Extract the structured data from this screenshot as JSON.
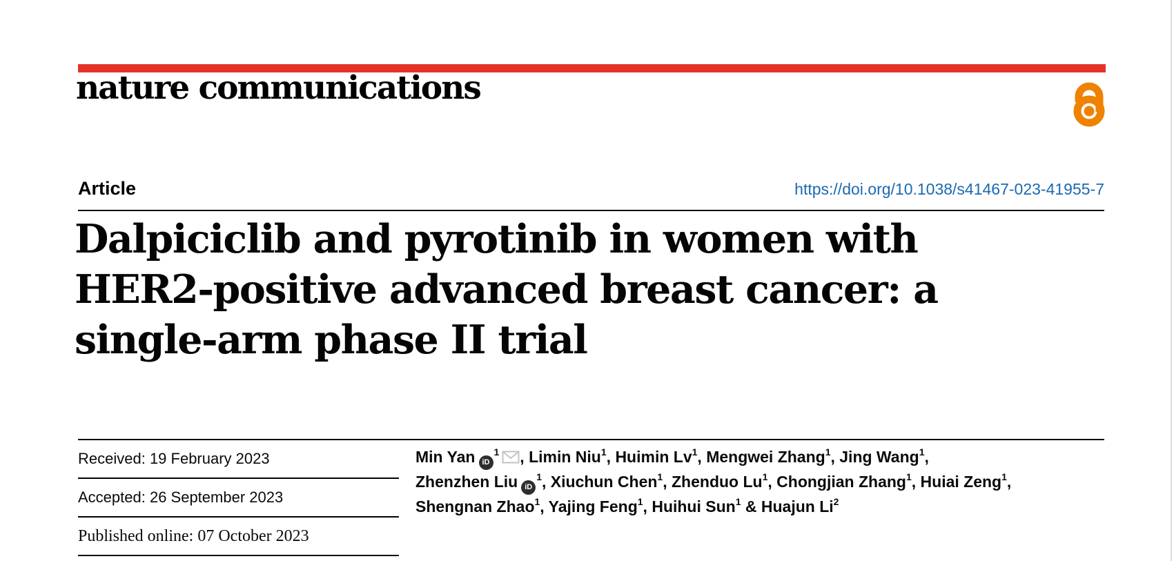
{
  "colors": {
    "accent_red": "#e5332a",
    "open_access_orange": "#ef8200",
    "link_blue": "#1b69b0"
  },
  "branding": {
    "journal_logo_text": "nature communications",
    "open_access_icon": "open-access-lock-icon"
  },
  "header": {
    "article_label": "Article",
    "doi_link": "https://doi.org/10.1038/s41467-023-41955-7"
  },
  "title": {
    "lines": [
      "Dalpiciclib and pyrotinib in women with",
      "HER2-positive advanced breast cancer: a",
      "single-arm phase II trial"
    ]
  },
  "dates": {
    "received": "Received: 19 February 2023",
    "accepted": "Accepted: 26 September 2023",
    "published": "Published online: 07 October 2023"
  },
  "authors": {
    "orcid_icon": "orcid-id-icon",
    "email_icon": "envelope-icon",
    "orcid_glyph": "iD",
    "lines": [
      [
        {
          "name": "Min Yan",
          "orcid": true,
          "sup": "1",
          "email": true,
          "after": ", "
        },
        {
          "name": "Limin Niu",
          "sup": "1",
          "after": ", "
        },
        {
          "name": "Huimin Lv",
          "sup": "1",
          "after": ", "
        },
        {
          "name": "Mengwei Zhang",
          "sup": "1",
          "after": ", "
        },
        {
          "name": "Jing Wang",
          "sup": "1",
          "after": ","
        }
      ],
      [
        {
          "name": "Zhenzhen Liu",
          "orcid": true,
          "sup": "1",
          "after": ", "
        },
        {
          "name": "Xiuchun Chen",
          "sup": "1",
          "after": ", "
        },
        {
          "name": "Zhenduo Lu",
          "sup": "1",
          "after": ", "
        },
        {
          "name": "Chongjian Zhang",
          "sup": "1",
          "after": ", "
        },
        {
          "name": "Huiai Zeng",
          "sup": "1",
          "after": ","
        }
      ],
      [
        {
          "name": "Shengnan Zhao",
          "sup": "1",
          "after": ", "
        },
        {
          "name": "Yajing Feng",
          "sup": "1",
          "after": ", "
        },
        {
          "name": "Huihui Sun",
          "sup": "1",
          "after": " & "
        },
        {
          "name": "Huajun Li",
          "sup": "2",
          "after": ""
        }
      ]
    ]
  }
}
